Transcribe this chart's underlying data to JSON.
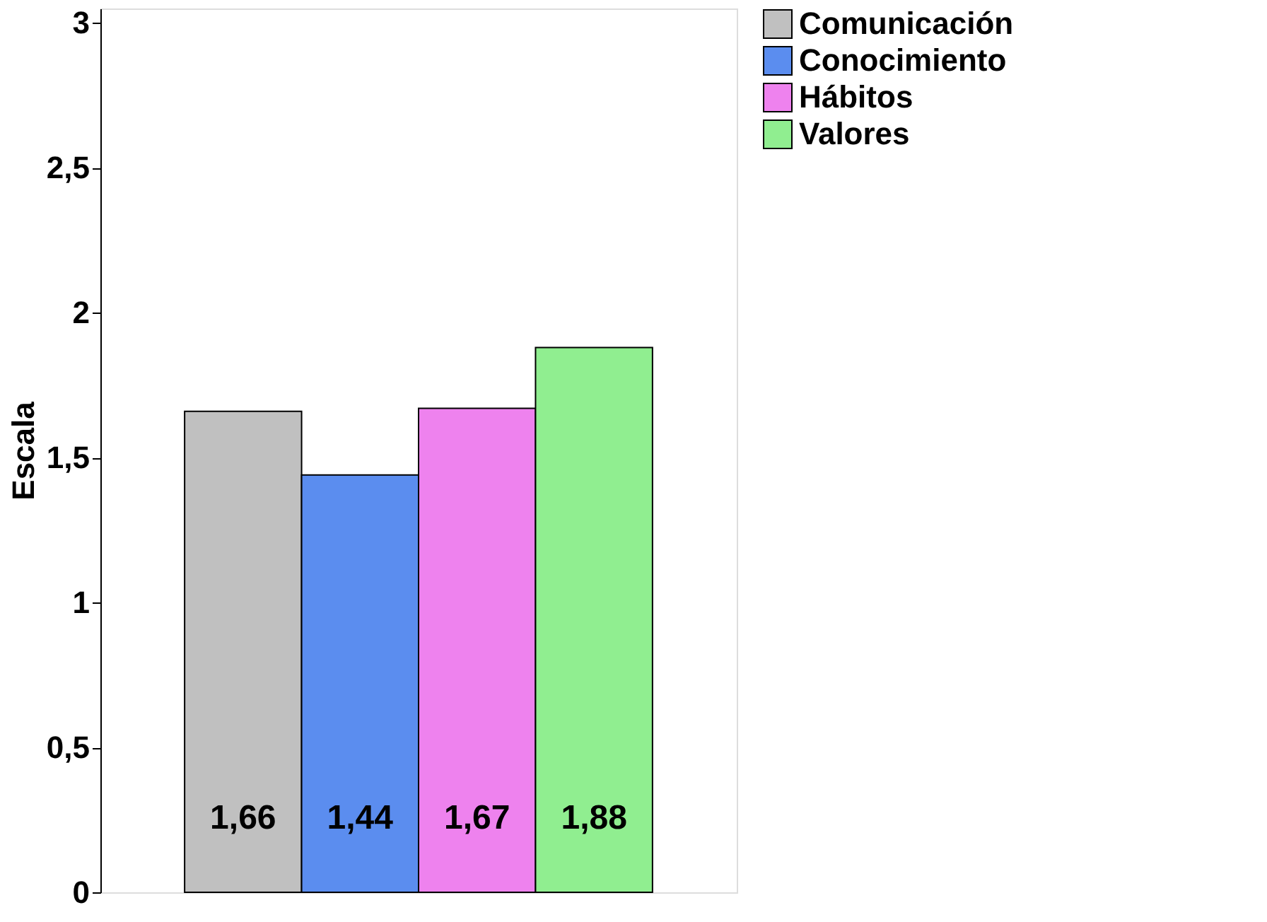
{
  "chart_data": {
    "type": "bar",
    "ylabel": "Escala",
    "categories": [
      null
    ],
    "series": [
      {
        "name": "Comunicación",
        "color": "#c0c0c0",
        "values": [
          1.66
        ],
        "value_labels": [
          "1,66"
        ]
      },
      {
        "name": "Conocimiento",
        "color": "#5b8def",
        "values": [
          1.44
        ],
        "value_labels": [
          "1,44"
        ]
      },
      {
        "name": "Hábitos",
        "color": "#ee82ee",
        "values": [
          1.67
        ],
        "value_labels": [
          "1,67"
        ]
      },
      {
        "name": "Valores",
        "color": "#90ee90",
        "values": [
          1.88
        ],
        "value_labels": [
          "1,88"
        ]
      }
    ],
    "ylim": [
      0,
      3.05
    ],
    "yticks": [
      0,
      {
        "value": 0.5,
        "label": "0,5"
      },
      1,
      {
        "value": 1.5,
        "label": "1,5"
      },
      2,
      {
        "value": 2.5,
        "label": "2,5"
      },
      3
    ],
    "grid": false,
    "legend": "right"
  }
}
